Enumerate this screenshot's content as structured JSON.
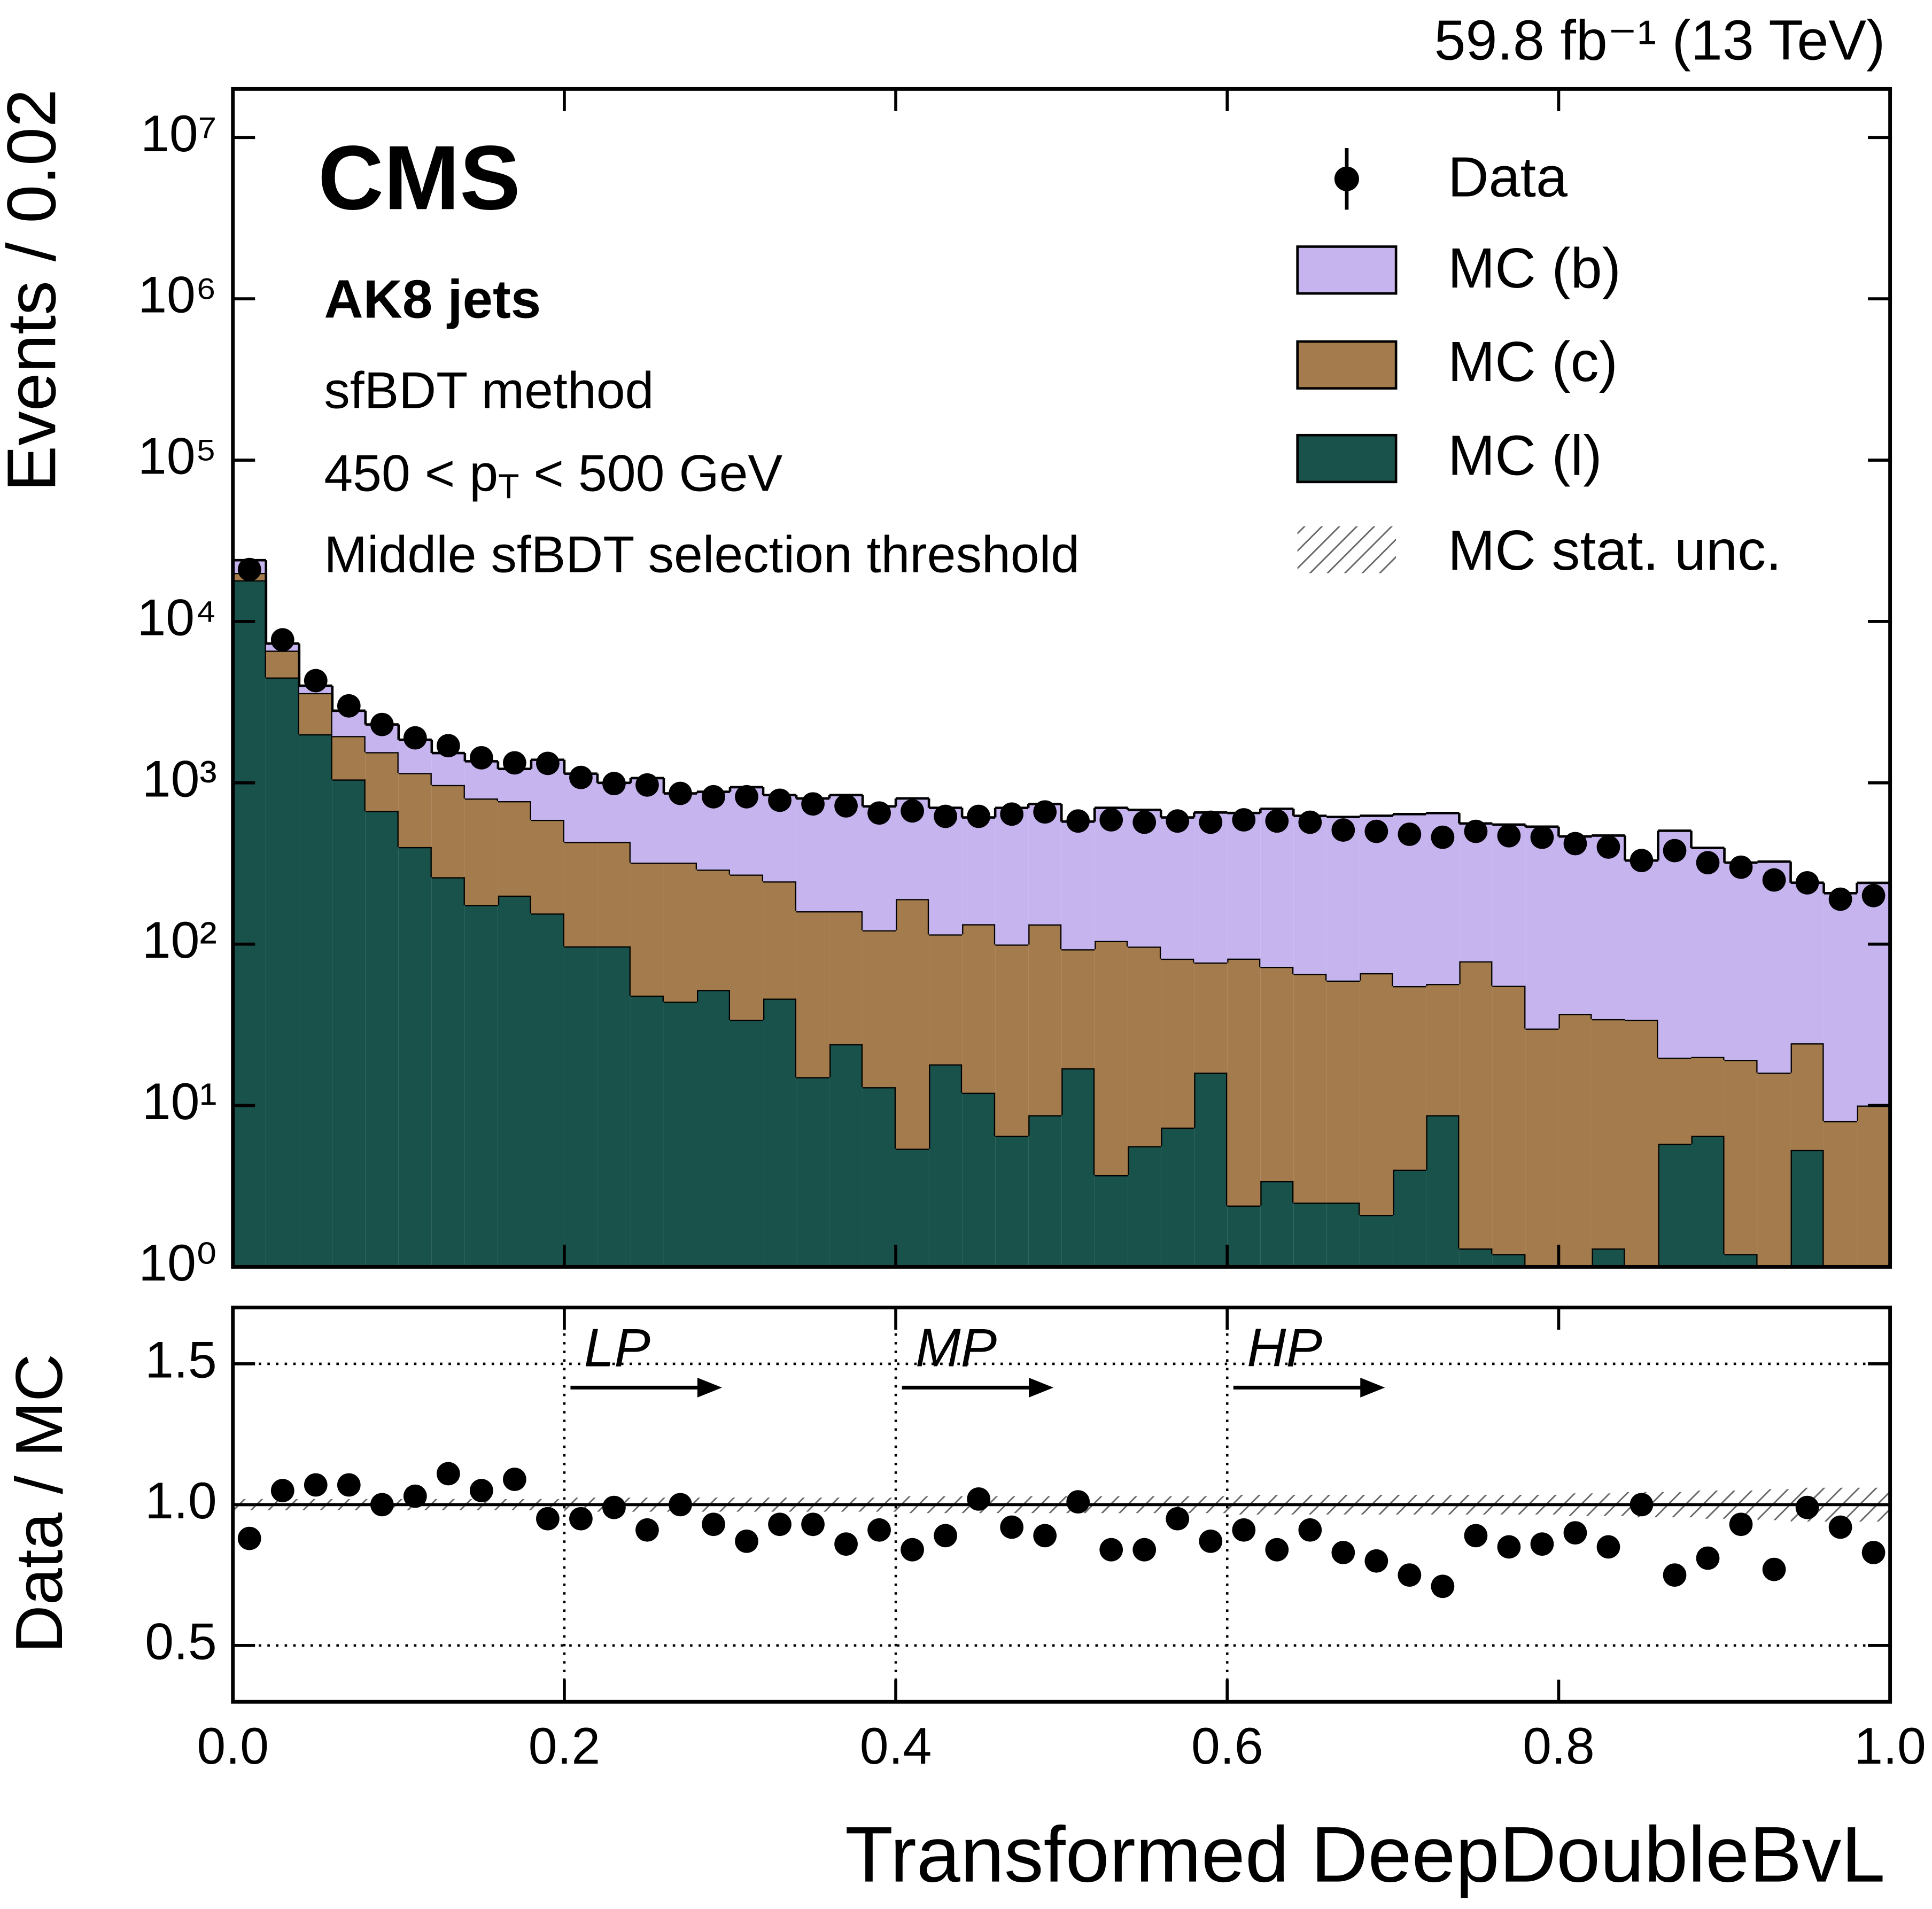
{
  "chart_data": [
    {
      "type": "stacked_histogram",
      "lumi": "59.8 fb⁻¹ (13 TeV)",
      "experiment": "CMS",
      "jet_label": "AK8 jets",
      "method": "sfBDT method",
      "pt_label": {
        "prefix": "450 < p",
        "sub": "T",
        "suffix": " < 500 GeV"
      },
      "selection": "Middle sfBDT selection threshold",
      "ylabel": "Events / 0.02",
      "log": true,
      "ylim": [
        1,
        20000000
      ],
      "yticks": [
        {
          "value": 1,
          "label": "10⁰"
        },
        {
          "value": 10,
          "label": "10¹"
        },
        {
          "value": 100,
          "label": "10²"
        },
        {
          "value": 1000,
          "label": "10³"
        },
        {
          "value": 10000,
          "label": "10⁴"
        },
        {
          "value": 100000,
          "label": "10⁵"
        },
        {
          "value": 1000000,
          "label": "10⁶"
        },
        {
          "value": 10000000,
          "label": "10⁷"
        }
      ],
      "bins": [
        0,
        0.02,
        0.04,
        0.06,
        0.08,
        0.1,
        0.12,
        0.14,
        0.16,
        0.18,
        0.2,
        0.22,
        0.24,
        0.26,
        0.28,
        0.3,
        0.32,
        0.34,
        0.36,
        0.38,
        0.4,
        0.42,
        0.44,
        0.46,
        0.48,
        0.5,
        0.52,
        0.54,
        0.56,
        0.58,
        0.6,
        0.62,
        0.64,
        0.66,
        0.68,
        0.7,
        0.72,
        0.74,
        0.76,
        0.78,
        0.8,
        0.82,
        0.84,
        0.86,
        0.88,
        0.9,
        0.92,
        0.94,
        0.96,
        0.98,
        1
      ],
      "data": {
        "name": "Data",
        "color": "#000000",
        "values": [
          21000,
          7700,
          4300,
          3000,
          2300,
          1900,
          1700,
          1430,
          1330,
          1320,
          1080,
          990,
          970,
          860,
          820,
          820,
          780,
          740,
          720,
          650,
          670,
          620,
          620,
          640,
          660,
          580,
          590,
          570,
          580,
          570,
          590,
          580,
          570,
          510,
          500,
          480,
          460,
          500,
          470,
          460,
          420,
          400,
          330,
          380,
          320,
          300,
          250,
          240,
          190,
          200
        ]
      },
      "series": [
        {
          "name": "MC (b)",
          "color": "#c6b4ee",
          "values": [
            4000,
            700,
            400,
            850,
            750,
            700,
            560,
            560,
            450,
            800,
            710,
            570,
            750,
            540,
            590,
            670,
            595,
            640,
            680,
            593,
            610,
            585,
            477,
            600,
            607,
            482,
            595,
            583,
            529,
            578,
            569,
            618,
            559,
            555,
            559,
            585,
            593,
            482,
            496,
            505,
            428,
            437,
            296,
            485,
            375,
            301,
            309,
            216,
            199,
            230
          ]
        },
        {
          "name": "MC (c)",
          "color": "#a47b4c",
          "values": [
            2000,
            2100,
            1600,
            900,
            880,
            750,
            710,
            625,
            570,
            435,
            333,
            333,
            272,
            276,
            238,
            236,
            199,
            145,
            136,
            109,
            185,
            97,
            121,
            93,
            124,
            76,
            101,
            91,
            74,
            61,
            79,
            69,
            63,
            57,
            64,
            51,
            48,
            77,
            54,
            30,
            37,
            33,
            34,
            14,
            13.5,
            18,
            16,
            19,
            8,
            10
          ]
        },
        {
          "name": "MC (l)",
          "color": "#19524b",
          "values": [
            18000,
            4500,
            2000,
            1050,
            670,
            400,
            260,
            175,
            200,
            155,
            97,
            97,
            48,
            44,
            52,
            34,
            46,
            15,
            24,
            13,
            5.4,
            18,
            12,
            6.5,
            8.7,
            17,
            3.7,
            5.6,
            7.3,
            16,
            2.4,
            3.4,
            2.5,
            2.5,
            2.1,
            4,
            8.7,
            1.3,
            1.2,
            0,
            0,
            1.3,
            0,
            5.8,
            6.5,
            1.2,
            0,
            5.3,
            0,
            0
          ]
        }
      ]
    },
    {
      "type": "ratio",
      "ylabel": "Data / MC",
      "xlabel": "Transformed DeepDoubleBvL",
      "xlim": [
        0,
        1
      ],
      "xticks": [
        {
          "value": 0,
          "label": "0.0"
        },
        0.2,
        0.4,
        0.6,
        0.8,
        {
          "value": 1,
          "label": "1.0"
        }
      ],
      "ylim": [
        0.3,
        1.7
      ],
      "yticks": [
        0.5,
        {
          "value": 1,
          "label": "1.0"
        },
        1.5
      ],
      "grid": true,
      "reference_line": 1,
      "thresholds": [
        {
          "value": 0.2,
          "label": "LP"
        },
        {
          "value": 0.4,
          "label": "MP"
        },
        {
          "value": 0.6,
          "label": "HP"
        }
      ],
      "values": [
        0.88,
        1.05,
        1.07,
        1.07,
        1.0,
        1.03,
        1.11,
        1.05,
        1.09,
        0.95,
        0.95,
        0.99,
        0.91,
        1.0,
        0.93,
        0.87,
        0.93,
        0.93,
        0.86,
        0.91,
        0.84,
        0.89,
        1.02,
        0.92,
        0.89,
        1.01,
        0.84,
        0.84,
        0.95,
        0.87,
        0.91,
        0.84,
        0.91,
        0.83,
        0.8,
        0.75,
        0.71,
        0.89,
        0.85,
        0.86,
        0.9,
        0.85,
        1.0,
        0.75,
        0.81,
        0.93,
        0.77,
        0.99,
        0.92,
        0.83
      ],
      "stat_unc": {
        "name": "MC stat. unc.",
        "values": [
          0.02,
          0.02,
          0.02,
          0.02,
          0.02,
          0.02,
          0.02,
          0.02,
          0.02,
          0.02,
          0.025,
          0.025,
          0.025,
          0.025,
          0.025,
          0.025,
          0.025,
          0.025,
          0.025,
          0.025,
          0.03,
          0.03,
          0.03,
          0.03,
          0.03,
          0.03,
          0.03,
          0.03,
          0.03,
          0.03,
          0.035,
          0.035,
          0.035,
          0.035,
          0.035,
          0.035,
          0.035,
          0.035,
          0.035,
          0.035,
          0.04,
          0.04,
          0.045,
          0.045,
          0.05,
          0.05,
          0.055,
          0.06,
          0.06,
          0.06
        ]
      }
    }
  ]
}
